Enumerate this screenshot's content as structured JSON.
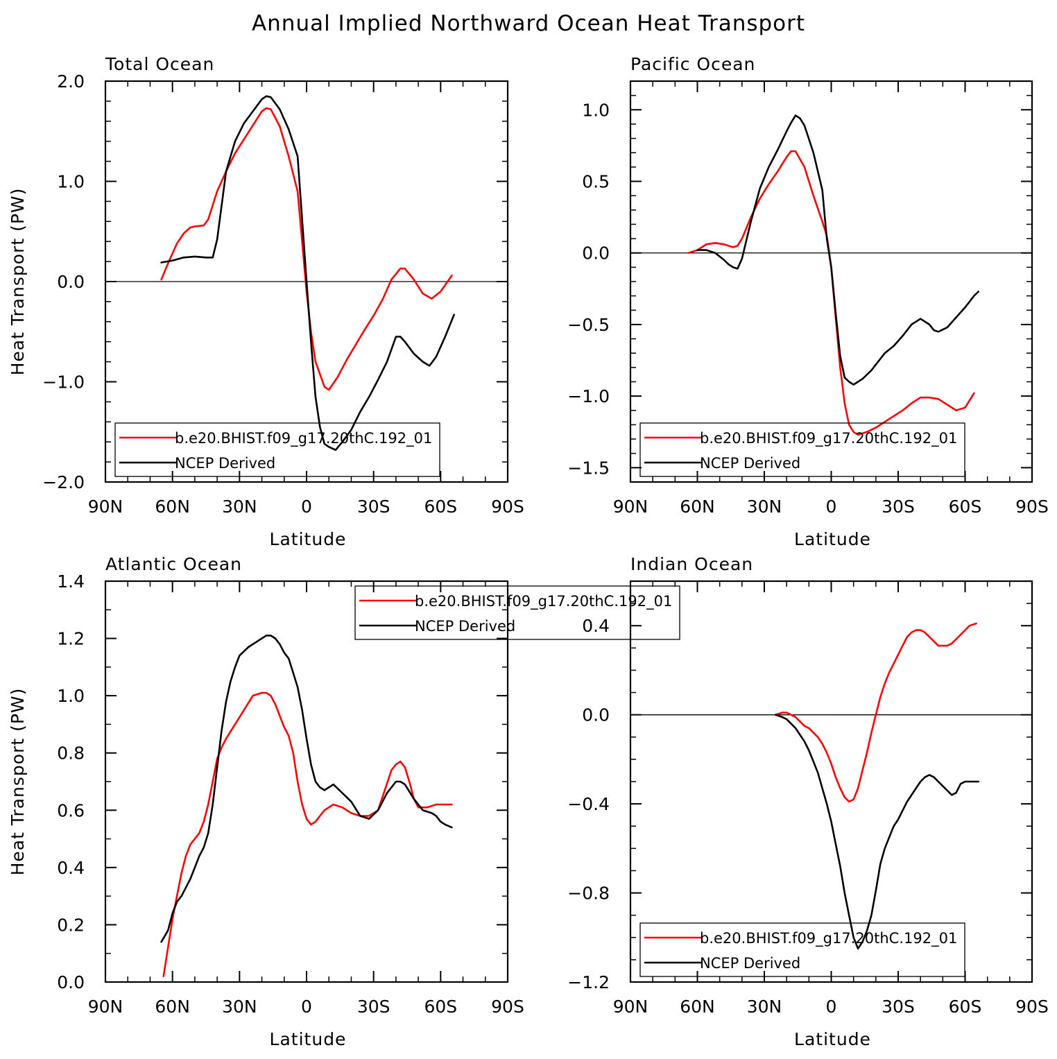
{
  "figure_title": "Annual Implied Northward Ocean Heat Transport",
  "colors": {
    "model": "#ff0000",
    "obs": "#000000",
    "axis": "#000000",
    "zero_line": "#000000"
  },
  "chart_data": [
    {
      "type": "line",
      "title": "Total Ocean",
      "xlabel": "Latitude",
      "ylabel": "Heat Transport (PW)",
      "xlim": [
        90,
        -90
      ],
      "x_ticks": [
        90,
        60,
        30,
        0,
        -30,
        -60,
        -90
      ],
      "x_tick_labels": [
        "90N",
        "60N",
        "30N",
        "0",
        "30S",
        "60S",
        "90S"
      ],
      "ylim": [
        -2.0,
        2.0
      ],
      "y_ticks": [
        -2.0,
        -1.0,
        0.0,
        1.0,
        2.0
      ],
      "y_tick_labels": [
        "−2.0",
        "−1.0",
        "0.0",
        "1.0",
        "2.0"
      ],
      "y_minor_step": 0.2,
      "zero_line": true,
      "legend": "bottom-left",
      "series": [
        {
          "name": "b.e20.BHIST.f09_g17.20thC.192_01",
          "color": "#ff0000",
          "x": [
            65,
            62,
            58,
            55,
            52,
            50,
            46,
            44,
            40,
            36,
            32,
            28,
            24,
            20,
            18,
            16,
            12,
            8,
            4,
            2,
            0,
            -2,
            -4,
            -8,
            -10,
            -14,
            -18,
            -22,
            -26,
            -30,
            -34,
            -38,
            -42,
            -44,
            -48,
            -52,
            -56,
            -60,
            -65
          ],
          "y": [
            0.02,
            0.18,
            0.38,
            0.48,
            0.54,
            0.55,
            0.56,
            0.62,
            0.9,
            1.1,
            1.28,
            1.42,
            1.56,
            1.7,
            1.73,
            1.72,
            1.55,
            1.25,
            0.9,
            0.4,
            -0.1,
            -0.5,
            -0.8,
            -1.05,
            -1.08,
            -0.95,
            -0.78,
            -0.63,
            -0.48,
            -0.34,
            -0.18,
            0.02,
            0.13,
            0.13,
            0.02,
            -0.12,
            -0.17,
            -0.1,
            0.06
          ]
        },
        {
          "name": "NCEP Derived",
          "color": "#000000",
          "x": [
            65,
            60,
            55,
            50,
            45,
            42,
            40,
            36,
            32,
            28,
            24,
            20,
            18,
            16,
            12,
            8,
            4,
            0,
            -2,
            -4,
            -6,
            -8,
            -10,
            -13,
            -16,
            -20,
            -24,
            -28,
            -32,
            -36,
            -40,
            -42,
            -44,
            -48,
            -52,
            -55,
            -58,
            -62,
            -66
          ],
          "y": [
            0.19,
            0.21,
            0.24,
            0.25,
            0.24,
            0.24,
            0.42,
            1.1,
            1.4,
            1.58,
            1.7,
            1.82,
            1.85,
            1.84,
            1.72,
            1.52,
            1.25,
            0.0,
            -0.6,
            -1.15,
            -1.45,
            -1.62,
            -1.65,
            -1.68,
            -1.6,
            -1.48,
            -1.3,
            -1.15,
            -0.98,
            -0.8,
            -0.55,
            -0.55,
            -0.6,
            -0.72,
            -0.8,
            -0.84,
            -0.75,
            -0.55,
            -0.33
          ]
        }
      ]
    },
    {
      "type": "line",
      "title": "Pacific Ocean",
      "xlabel": "Latitude",
      "ylabel": "",
      "xlim": [
        90,
        -90
      ],
      "x_ticks": [
        90,
        60,
        30,
        0,
        -30,
        -60,
        -90
      ],
      "x_tick_labels": [
        "90N",
        "60N",
        "30N",
        "0",
        "30S",
        "60S",
        "90S"
      ],
      "ylim": [
        -1.6,
        1.2
      ],
      "y_ticks": [
        -1.5,
        -1.0,
        -0.5,
        0.0,
        0.5,
        1.0
      ],
      "y_tick_labels": [
        "−1.5",
        "−1.0",
        "−0.5",
        "0.0",
        "0.5",
        "1.0"
      ],
      "y_minor_step": 0.1,
      "zero_line": true,
      "legend": "bottom-left",
      "series": [
        {
          "name": "b.e20.BHIST.f09_g17.20thC.192_01",
          "color": "#ff0000",
          "x": [
            64,
            60,
            56,
            52,
            48,
            44,
            42,
            40,
            36,
            32,
            28,
            24,
            20,
            18,
            16,
            12,
            8,
            4,
            2,
            0,
            -2,
            -4,
            -6,
            -8,
            -10,
            -12,
            -16,
            -20,
            -24,
            -28,
            -32,
            -36,
            -40,
            -44,
            -48,
            -52,
            -56,
            -60,
            -64
          ],
          "y": [
            0.0,
            0.02,
            0.06,
            0.07,
            0.06,
            0.04,
            0.05,
            0.1,
            0.25,
            0.38,
            0.48,
            0.57,
            0.67,
            0.71,
            0.71,
            0.6,
            0.4,
            0.22,
            0.12,
            -0.1,
            -0.45,
            -0.8,
            -1.05,
            -1.2,
            -1.25,
            -1.27,
            -1.25,
            -1.22,
            -1.18,
            -1.14,
            -1.1,
            -1.05,
            -1.01,
            -1.01,
            -1.02,
            -1.06,
            -1.1,
            -1.08,
            -0.98
          ]
        },
        {
          "name": "NCEP Derived",
          "color": "#000000",
          "x": [
            60,
            56,
            52,
            48,
            46,
            44,
            42,
            40,
            36,
            32,
            28,
            24,
            20,
            18,
            16,
            14,
            12,
            8,
            4,
            2,
            0,
            -2,
            -4,
            -6,
            -8,
            -10,
            -14,
            -18,
            -20,
            -24,
            -28,
            -32,
            -36,
            -40,
            -42,
            -44,
            -46,
            -48,
            -52,
            -56,
            -60,
            -64,
            -66
          ],
          "y": [
            0.02,
            0.02,
            0.0,
            -0.05,
            -0.08,
            -0.1,
            -0.11,
            -0.04,
            0.22,
            0.45,
            0.6,
            0.72,
            0.85,
            0.91,
            0.96,
            0.94,
            0.89,
            0.7,
            0.44,
            0.1,
            -0.1,
            -0.42,
            -0.72,
            -0.87,
            -0.9,
            -0.92,
            -0.88,
            -0.82,
            -0.78,
            -0.7,
            -0.65,
            -0.58,
            -0.5,
            -0.46,
            -0.48,
            -0.5,
            -0.54,
            -0.55,
            -0.52,
            -0.45,
            -0.38,
            -0.3,
            -0.27
          ]
        }
      ]
    },
    {
      "type": "line",
      "title": "Atlantic Ocean",
      "xlabel": "Latitude",
      "ylabel": "Heat Transport (PW)",
      "xlim": [
        90,
        -90
      ],
      "x_ticks": [
        90,
        60,
        30,
        0,
        -30,
        -60,
        -90
      ],
      "x_tick_labels": [
        "90N",
        "60N",
        "30N",
        "0",
        "30S",
        "60S",
        "90S"
      ],
      "ylim": [
        0.0,
        1.4
      ],
      "y_ticks": [
        0.0,
        0.2,
        0.4,
        0.6,
        0.8,
        1.0,
        1.2,
        1.4
      ],
      "y_tick_labels": [
        "0.0",
        "0.2",
        "0.4",
        "0.6",
        "0.8",
        "1.0",
        "1.2",
        "1.4"
      ],
      "y_minor_step": 0.1,
      "zero_line": false,
      "legend": "top-center",
      "series": [
        {
          "name": "b.e20.BHIST.f09_g17.20thC.192_01",
          "color": "#ff0000",
          "x": [
            64,
            62,
            60,
            58,
            56,
            54,
            52,
            50,
            48,
            46,
            44,
            42,
            40,
            38,
            36,
            32,
            28,
            24,
            20,
            18,
            16,
            14,
            12,
            10,
            8,
            6,
            4,
            2,
            0,
            -2,
            -4,
            -6,
            -8,
            -12,
            -16,
            -20,
            -24,
            -28,
            -32,
            -35,
            -38,
            -40,
            -42,
            -44,
            -46,
            -48,
            -50,
            -54,
            -58,
            -62,
            -65
          ],
          "y": [
            0.02,
            0.12,
            0.22,
            0.3,
            0.38,
            0.44,
            0.48,
            0.5,
            0.52,
            0.56,
            0.62,
            0.7,
            0.78,
            0.82,
            0.85,
            0.9,
            0.95,
            1.0,
            1.01,
            1.01,
            1.0,
            0.97,
            0.93,
            0.89,
            0.86,
            0.8,
            0.7,
            0.62,
            0.57,
            0.55,
            0.56,
            0.58,
            0.6,
            0.62,
            0.61,
            0.59,
            0.58,
            0.58,
            0.6,
            0.67,
            0.74,
            0.76,
            0.77,
            0.75,
            0.7,
            0.64,
            0.61,
            0.61,
            0.62,
            0.62,
            0.62
          ]
        },
        {
          "name": "NCEP Derived",
          "color": "#000000",
          "x": [
            65,
            62,
            60,
            58,
            56,
            54,
            52,
            50,
            48,
            46,
            44,
            42,
            40,
            38,
            36,
            34,
            32,
            30,
            26,
            22,
            18,
            16,
            14,
            12,
            10,
            8,
            6,
            4,
            2,
            0,
            -2,
            -4,
            -6,
            -8,
            -12,
            -16,
            -20,
            -24,
            -28,
            -32,
            -36,
            -40,
            -42,
            -44,
            -48,
            -52,
            -56,
            -58,
            -60,
            -62,
            -65
          ],
          "y": [
            0.14,
            0.18,
            0.24,
            0.28,
            0.3,
            0.33,
            0.36,
            0.4,
            0.44,
            0.47,
            0.52,
            0.62,
            0.75,
            0.88,
            0.98,
            1.05,
            1.1,
            1.14,
            1.17,
            1.19,
            1.21,
            1.21,
            1.2,
            1.18,
            1.15,
            1.13,
            1.08,
            1.03,
            0.95,
            0.85,
            0.76,
            0.7,
            0.68,
            0.67,
            0.69,
            0.66,
            0.63,
            0.58,
            0.57,
            0.6,
            0.66,
            0.7,
            0.7,
            0.69,
            0.64,
            0.6,
            0.59,
            0.58,
            0.56,
            0.55,
            0.54
          ]
        }
      ]
    },
    {
      "type": "line",
      "title": "Indian Ocean",
      "xlabel": "Latitude",
      "ylabel": "",
      "xlim": [
        90,
        -90
      ],
      "x_ticks": [
        90,
        60,
        30,
        0,
        -30,
        -60,
        -90
      ],
      "x_tick_labels": [
        "90N",
        "60N",
        "30N",
        "0",
        "30S",
        "60S",
        "90S"
      ],
      "ylim": [
        -1.2,
        0.6
      ],
      "y_ticks": [
        -1.2,
        -0.8,
        -0.4,
        0.0,
        0.4
      ],
      "y_tick_labels": [
        "−1.2",
        "−0.8",
        "−0.4",
        "0.0",
        "0.4"
      ],
      "y_minor_step": 0.1,
      "zero_line": true,
      "legend": "bottom-left",
      "series": [
        {
          "name": "b.e20.BHIST.f09_g17.20thC.192_01",
          "color": "#ff0000",
          "x": [
            25,
            22,
            20,
            18,
            16,
            14,
            12,
            10,
            8,
            6,
            4,
            2,
            0,
            -2,
            -4,
            -6,
            -8,
            -10,
            -12,
            -14,
            -16,
            -18,
            -20,
            -22,
            -24,
            -26,
            -28,
            -30,
            -32,
            -34,
            -36,
            -38,
            -40,
            -42,
            -44,
            -46,
            -48,
            -50,
            -52,
            -54,
            -56,
            -58,
            -60,
            -62,
            -65
          ],
          "y": [
            0.0,
            0.01,
            0.01,
            0.0,
            -0.01,
            -0.03,
            -0.05,
            -0.06,
            -0.08,
            -0.1,
            -0.13,
            -0.17,
            -0.22,
            -0.28,
            -0.33,
            -0.37,
            -0.39,
            -0.38,
            -0.33,
            -0.25,
            -0.17,
            -0.08,
            0.0,
            0.08,
            0.14,
            0.19,
            0.23,
            0.27,
            0.31,
            0.35,
            0.37,
            0.38,
            0.38,
            0.37,
            0.35,
            0.33,
            0.31,
            0.31,
            0.31,
            0.32,
            0.34,
            0.36,
            0.38,
            0.4,
            0.41
          ]
        },
        {
          "name": "NCEP Derived",
          "color": "#000000",
          "x": [
            25,
            22,
            20,
            18,
            16,
            14,
            12,
            10,
            8,
            6,
            4,
            2,
            0,
            -2,
            -4,
            -6,
            -8,
            -10,
            -12,
            -14,
            -16,
            -18,
            -20,
            -22,
            -24,
            -26,
            -28,
            -30,
            -32,
            -34,
            -36,
            -38,
            -40,
            -42,
            -44,
            -46,
            -48,
            -50,
            -52,
            -54,
            -56,
            -58,
            -60,
            -62,
            -66
          ],
          "y": [
            0.0,
            -0.01,
            -0.02,
            -0.04,
            -0.06,
            -0.09,
            -0.12,
            -0.16,
            -0.21,
            -0.26,
            -0.33,
            -0.4,
            -0.48,
            -0.58,
            -0.68,
            -0.8,
            -0.9,
            -1.0,
            -1.05,
            -1.02,
            -0.97,
            -0.9,
            -0.79,
            -0.67,
            -0.6,
            -0.55,
            -0.5,
            -0.47,
            -0.43,
            -0.39,
            -0.36,
            -0.33,
            -0.3,
            -0.28,
            -0.27,
            -0.28,
            -0.3,
            -0.32,
            -0.34,
            -0.36,
            -0.35,
            -0.31,
            -0.3,
            -0.3,
            -0.3
          ]
        }
      ]
    }
  ]
}
